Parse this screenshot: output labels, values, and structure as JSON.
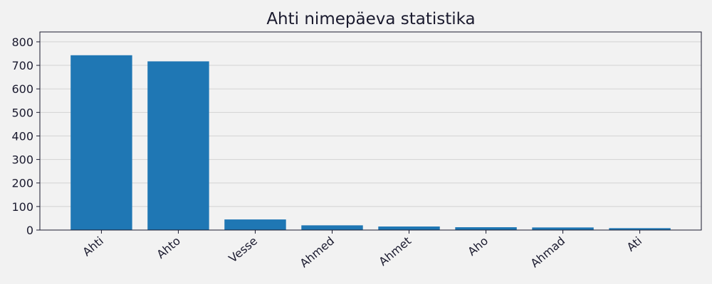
{
  "chart_data": {
    "type": "bar",
    "title": "Ahti nimepäeva statistika",
    "categories": [
      "Ahti",
      "Ahto",
      "Vesse",
      "Ahmed",
      "Ahmet",
      "Aho",
      "Ahmad",
      "Ati"
    ],
    "values": [
      743,
      717,
      45,
      20,
      15,
      12,
      11,
      8
    ],
    "ylim": [
      0,
      842
    ],
    "yticks": [
      0,
      100,
      200,
      300,
      400,
      500,
      600,
      700,
      800
    ],
    "xlabel": "",
    "ylabel": "",
    "grid": true,
    "bar_color": "#1f77b4",
    "background": "#f2f2f2",
    "grid_color": "#d3d3d3"
  }
}
